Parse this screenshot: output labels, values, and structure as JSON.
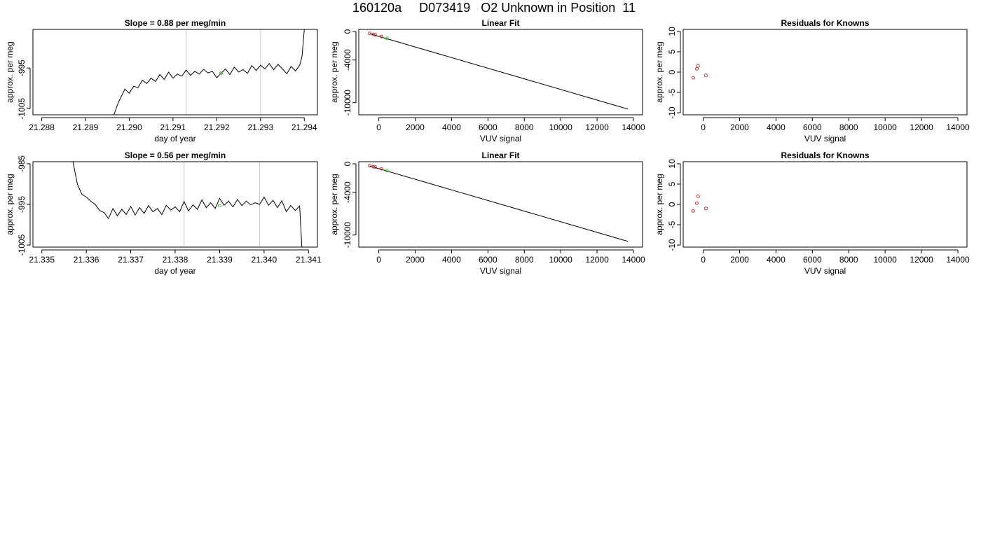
{
  "title": {
    "run": "160120a",
    "tank": "D073419",
    "description": "O2 Unknown in Position  11"
  },
  "chart_data": [
    {
      "type": "line",
      "title": "Slope =  0.88  per meg/min",
      "xlabel": "day of year",
      "ylabel": "approx. per meg",
      "xlim": [
        21.2878,
        21.2943
      ],
      "ylim": [
        -1006.5,
        -985.5
      ],
      "xticks": [
        "21.288",
        "21.289",
        "21.290",
        "21.291",
        "21.292",
        "21.293",
        "21.294"
      ],
      "xtick_values": [
        21.288,
        21.289,
        21.29,
        21.291,
        21.292,
        21.293,
        21.294
      ],
      "yticks": [
        "-1005",
        "-995"
      ],
      "ytick_values": [
        -1005,
        -995
      ],
      "vlines": [
        21.2913,
        21.293
      ],
      "green_point": {
        "x": 21.2921,
        "y": -996.3
      },
      "series": [
        {
          "x": [
            21.28965,
            21.28975,
            21.2899,
            21.29,
            21.2901,
            21.2902,
            21.2903,
            21.2904,
            21.2905,
            21.2906,
            21.2907,
            21.2908,
            21.2909,
            21.291,
            21.2911,
            21.2912,
            21.2913,
            21.2914,
            21.2915,
            21.2916,
            21.2917,
            21.2918,
            21.2919,
            21.292,
            21.2921,
            21.2922,
            21.2923,
            21.2924,
            21.2925,
            21.2926,
            21.2927,
            21.2928,
            21.2929,
            21.293,
            21.2931,
            21.2932,
            21.2933,
            21.2934,
            21.2935,
            21.2936,
            21.2937,
            21.2938,
            21.2939,
            21.29395,
            21.294
          ],
          "y": [
            -1006.5,
            -1003.5,
            -1000.2,
            -1001.2,
            -999.5,
            -999.8,
            -998,
            -998.8,
            -997.5,
            -998.3,
            -996.6,
            -997.8,
            -996,
            -997.5,
            -996.5,
            -997,
            -995.5,
            -996.8,
            -995.8,
            -996.5,
            -995.3,
            -996.2,
            -995.8,
            -997.4,
            -996.3,
            -995.2,
            -996.6,
            -994.8,
            -996,
            -995.4,
            -996.3,
            -994.4,
            -995.6,
            -994.3,
            -995.2,
            -993.9,
            -995.4,
            -994.1,
            -995.2,
            -996.4,
            -994.6,
            -995.7,
            -994.2,
            -992,
            -985.5
          ]
        }
      ]
    },
    {
      "type": "scatter",
      "title": "Linear Fit",
      "xlabel": "VUV signal",
      "ylabel": "approx. per meg",
      "xlim": [
        -1100,
        14500
      ],
      "ylim": [
        -11700,
        300
      ],
      "xticks": [
        "0",
        "2000",
        "4000",
        "6000",
        "8000",
        "10000",
        "12000",
        "14000"
      ],
      "xtick_values": [
        0,
        2000,
        4000,
        6000,
        8000,
        10000,
        12000,
        14000
      ],
      "yticks": [
        "0",
        "-4000",
        "-10000"
      ],
      "ytick_values": [
        0,
        -4000,
        -10000
      ],
      "fit": {
        "x": [
          -500,
          13700
        ],
        "y": [
          -300,
          -10900
        ]
      },
      "knowns": {
        "x": [
          -500,
          -300,
          -200,
          150
        ],
        "y": [
          -250,
          -400,
          -450,
          -700
        ]
      },
      "unknown": {
        "x": [
          450
        ],
        "y": [
          -950
        ]
      }
    },
    {
      "type": "scatter",
      "title": "Residuals for Knowns",
      "xlabel": "VUV signal",
      "ylabel": "approx. per meg",
      "xlim": [
        -1100,
        14500
      ],
      "ylim": [
        -10.5,
        10.5
      ],
      "xticks": [
        "0",
        "2000",
        "4000",
        "6000",
        "8000",
        "10000",
        "12000",
        "14000"
      ],
      "xtick_values": [
        0,
        2000,
        4000,
        6000,
        8000,
        10000,
        12000,
        14000
      ],
      "yticks": [
        "-10",
        "-5",
        "0",
        "5",
        "10"
      ],
      "ytick_values": [
        -10,
        -5,
        0,
        5,
        10
      ],
      "knowns": {
        "x": [
          -550,
          -350,
          -280,
          150
        ],
        "y": [
          -1.4,
          0.8,
          1.5,
          -0.8
        ]
      }
    },
    {
      "type": "line",
      "title": "Slope =  0.56  per meg/min",
      "xlabel": "day of year",
      "ylabel": "approx. per meg",
      "xlim": [
        21.3348,
        21.3412
      ],
      "ylim": [
        -1005.5,
        -984.5
      ],
      "xticks": [
        "21.335",
        "21.336",
        "21.337",
        "21.338",
        "21.339",
        "21.340",
        "21.341"
      ],
      "xtick_values": [
        21.335,
        21.336,
        21.337,
        21.338,
        21.339,
        21.34,
        21.341
      ],
      "yticks": [
        "-1005",
        "-995",
        "-985"
      ],
      "ytick_values": [
        -1005,
        -995,
        -985
      ],
      "vlines": [
        21.3382,
        21.3399
      ],
      "green_point": {
        "x": 21.339,
        "y": -995.3
      },
      "series": [
        {
          "x": [
            21.3357,
            21.3358,
            21.3359,
            21.336,
            21.3361,
            21.3362,
            21.3363,
            21.3364,
            21.3365,
            21.3366,
            21.3367,
            21.3368,
            21.3369,
            21.337,
            21.3371,
            21.3372,
            21.3373,
            21.3374,
            21.3375,
            21.3376,
            21.3377,
            21.3378,
            21.3379,
            21.338,
            21.3381,
            21.3382,
            21.3383,
            21.3384,
            21.3385,
            21.3386,
            21.3387,
            21.3388,
            21.3389,
            21.339,
            21.3391,
            21.3392,
            21.3393,
            21.3394,
            21.3395,
            21.3396,
            21.3397,
            21.3398,
            21.3399,
            21.34,
            21.3401,
            21.3402,
            21.3403,
            21.3404,
            21.3405,
            21.3406,
            21.3407,
            21.3408,
            21.34085
          ],
          "y": [
            -984.5,
            -990,
            -992.5,
            -993.2,
            -994.2,
            -995,
            -996.5,
            -997,
            -998.5,
            -996,
            -997.8,
            -996.2,
            -997.5,
            -995.5,
            -997.6,
            -995.8,
            -997.2,
            -995.3,
            -996.8,
            -996,
            -997.5,
            -995.2,
            -996.4,
            -995.6,
            -996.8,
            -994.3,
            -996.6,
            -995.1,
            -996.2,
            -993.9,
            -995.8,
            -994.6,
            -996,
            -993.5,
            -995.2,
            -994.2,
            -995.6,
            -993.8,
            -995.3,
            -994.2,
            -995.1,
            -994.6,
            -995,
            -993.2,
            -995.2,
            -994,
            -995.8,
            -994.1,
            -996.8,
            -995.3,
            -996.5,
            -995.4,
            -1005.5
          ]
        }
      ]
    },
    {
      "type": "scatter",
      "title": "Linear Fit",
      "xlabel": "VUV signal",
      "ylabel": "approx. per meg",
      "xlim": [
        -1100,
        14500
      ],
      "ylim": [
        -11700,
        300
      ],
      "xticks": [
        "0",
        "2000",
        "4000",
        "6000",
        "8000",
        "10000",
        "12000",
        "14000"
      ],
      "xtick_values": [
        0,
        2000,
        4000,
        6000,
        8000,
        10000,
        12000,
        14000
      ],
      "yticks": [
        "0",
        "-4000",
        "-10000"
      ],
      "ytick_values": [
        0,
        -4000,
        -10000
      ],
      "fit": {
        "x": [
          -500,
          13700
        ],
        "y": [
          -300,
          -10900
        ]
      },
      "knowns": {
        "x": [
          -500,
          -300,
          -200,
          150
        ],
        "y": [
          -250,
          -400,
          -450,
          -700
        ]
      },
      "unknown": {
        "x": [
          450
        ],
        "y": [
          -950
        ]
      }
    },
    {
      "type": "scatter",
      "title": "Residuals for Knowns",
      "xlabel": "VUV signal",
      "ylabel": "approx. per meg",
      "xlim": [
        -1100,
        14500
      ],
      "ylim": [
        -10.5,
        10.5
      ],
      "xticks": [
        "0",
        "2000",
        "4000",
        "6000",
        "8000",
        "10000",
        "12000",
        "14000"
      ],
      "xtick_values": [
        0,
        2000,
        4000,
        6000,
        8000,
        10000,
        12000,
        14000
      ],
      "yticks": [
        "-10",
        "-5",
        "0",
        "5",
        "10"
      ],
      "ytick_values": [
        -10,
        -5,
        0,
        5,
        10
      ],
      "knowns": {
        "x": [
          -550,
          -350,
          -280,
          150
        ],
        "y": [
          -1.6,
          0.3,
          2.0,
          -1.0
        ]
      }
    }
  ],
  "colors": {
    "known_point": "#cc3333",
    "unknown_point": "#33cc33",
    "reference_line": "#cccccc"
  }
}
